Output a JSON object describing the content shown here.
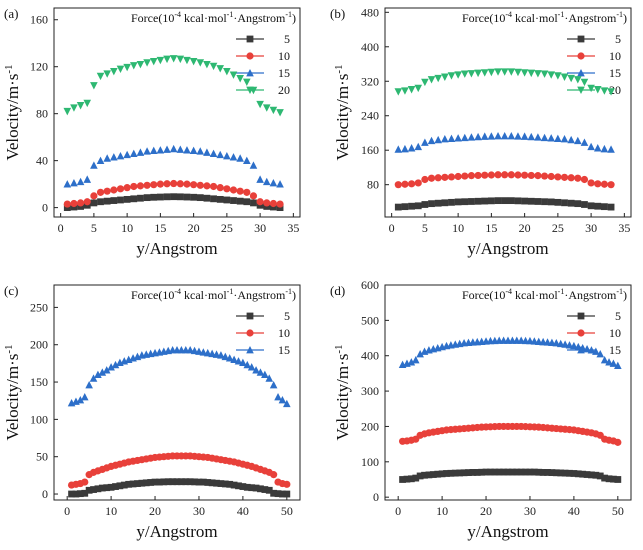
{
  "colors": {
    "s5": "#3a3a3a",
    "s10": "#e8403a",
    "s15": "#2d6fc9",
    "s20": "#2eb872"
  },
  "chart_data": [
    {
      "type": "scatter",
      "panel_label": "(a)",
      "xlabel": "y/Angstrom",
      "ylabel": "Velocity/m·s",
      "ylabel_sup": "-1",
      "xlim": [
        -1,
        36
      ],
      "ylim": [
        -8,
        170
      ],
      "xticks": [
        0,
        5,
        10,
        15,
        20,
        25,
        30,
        35
      ],
      "yticks": [
        0,
        40,
        80,
        120,
        160
      ],
      "legend_title": "Force(10",
      "legend_title_sup1": "-4",
      "legend_title_mid": " kcal·mol",
      "legend_title_sup2": "-1",
      "legend_title_end": "·Angstrom",
      "legend_title_sup3": "-1",
      "legend_title_close": ")",
      "x": [
        1,
        2,
        3,
        4,
        5,
        6,
        7,
        8,
        9,
        10,
        11,
        12,
        13,
        14,
        15,
        16,
        17,
        18,
        19,
        20,
        21,
        22,
        23,
        24,
        25,
        26,
        27,
        28,
        29,
        30,
        31,
        32,
        33
      ],
      "series": [
        {
          "name": "5",
          "marker": "square",
          "color_key": "s5",
          "values": [
            0,
            0.5,
            1,
            2,
            4,
            5,
            5.5,
            6,
            6.5,
            7,
            7.5,
            8,
            8.5,
            8.8,
            9,
            9.2,
            9.3,
            9.2,
            9,
            8.8,
            8.5,
            8,
            7.5,
            7,
            6.5,
            6,
            5.5,
            5,
            4,
            2,
            1,
            0.5,
            0
          ]
        },
        {
          "name": "10",
          "marker": "circle",
          "color_key": "s10",
          "values": [
            3,
            3.5,
            4,
            5,
            10,
            13,
            14,
            15,
            16,
            17,
            18,
            18.5,
            19,
            19.5,
            20,
            20.3,
            20.5,
            20.3,
            20,
            19.5,
            19,
            18.5,
            18,
            17,
            16,
            15,
            14,
            13,
            10,
            5,
            4,
            3.5,
            3
          ]
        },
        {
          "name": "15",
          "marker": "triangle-up",
          "color_key": "s15",
          "values": [
            20,
            21,
            22,
            24,
            36,
            40,
            42,
            43,
            44,
            45,
            46,
            47,
            48,
            48.5,
            49,
            49.5,
            50,
            49.5,
            49,
            48.5,
            48,
            47,
            46,
            45,
            44,
            43,
            42,
            40,
            36,
            24,
            22,
            21,
            20
          ]
        },
        {
          "name": "20",
          "marker": "triangle-down",
          "color_key": "s20",
          "values": [
            82,
            85,
            87,
            89,
            104,
            112,
            114,
            116,
            118,
            119.5,
            121,
            122,
            123.5,
            124.5,
            125.5,
            126.5,
            127,
            126.5,
            125.5,
            124.5,
            123.5,
            122,
            120.5,
            118.5,
            116,
            113,
            110,
            107,
            100,
            88,
            85,
            83,
            81
          ]
        }
      ]
    },
    {
      "type": "scatter",
      "panel_label": "(b)",
      "xlabel": "y/Angstrom",
      "ylabel": "Velocity/m·s",
      "ylabel_sup": "-1",
      "xlim": [
        -1,
        36
      ],
      "ylim": [
        5,
        490
      ],
      "xticks": [
        0,
        5,
        10,
        15,
        20,
        25,
        30,
        35
      ],
      "yticks": [
        80,
        160,
        240,
        320,
        400,
        480
      ],
      "legend_title": "Force(10",
      "legend_title_sup1": "-4",
      "legend_title_mid": " kcal·mol",
      "legend_title_sup2": "-1",
      "legend_title_end": "·Angstrom",
      "legend_title_sup3": "-1",
      "legend_title_close": ")",
      "x": [
        1,
        2,
        3,
        4,
        5,
        6,
        7,
        8,
        9,
        10,
        11,
        12,
        13,
        14,
        15,
        16,
        17,
        18,
        19,
        20,
        21,
        22,
        23,
        24,
        25,
        26,
        27,
        28,
        29,
        30,
        31,
        32,
        33
      ],
      "series": [
        {
          "name": "5",
          "marker": "square",
          "color_key": "s5",
          "values": [
            28,
            29,
            30,
            31,
            34,
            36,
            37,
            38,
            39,
            40,
            40.5,
            41,
            41.5,
            42,
            42.5,
            43,
            43,
            43,
            42.5,
            42,
            41.5,
            41,
            40.5,
            40,
            39,
            38,
            37,
            36,
            34,
            31,
            30,
            29,
            28
          ]
        },
        {
          "name": "10",
          "marker": "circle",
          "color_key": "s10",
          "values": [
            80,
            81,
            82,
            84,
            92,
            95,
            96,
            97,
            98,
            99,
            100,
            101,
            101.5,
            102,
            102.5,
            103,
            103,
            103,
            102.5,
            102,
            101.5,
            101,
            100,
            99,
            98,
            97,
            96,
            95,
            92,
            84,
            82,
            81,
            80
          ]
        },
        {
          "name": "15",
          "marker": "triangle-up",
          "color_key": "s15",
          "values": [
            162,
            163,
            165,
            168,
            178,
            182,
            184,
            186,
            187,
            188,
            189,
            190,
            191,
            192,
            192.5,
            193,
            193,
            193,
            192.5,
            192,
            191,
            190,
            189,
            188,
            187,
            186,
            184,
            182,
            178,
            168,
            165,
            163,
            162
          ]
        },
        {
          "name": "20",
          "marker": "triangle-down",
          "color_key": "s20",
          "values": [
            296,
            298,
            301,
            304,
            318,
            324,
            327,
            330,
            333,
            335,
            337,
            338,
            339,
            340,
            341,
            342,
            342,
            342,
            341,
            340,
            339,
            338,
            337,
            335,
            333,
            330,
            327,
            324,
            318,
            304,
            301,
            298,
            296
          ]
        }
      ]
    },
    {
      "type": "scatter",
      "panel_label": "(c)",
      "xlabel": "y/Angstrom",
      "ylabel": "Velocity/m·s",
      "ylabel_sup": "-1",
      "xlim": [
        -3,
        53
      ],
      "ylim": [
        -8,
        280
      ],
      "xticks": [
        0,
        10,
        20,
        30,
        40,
        50
      ],
      "yticks": [
        0,
        50,
        100,
        150,
        200,
        250
      ],
      "legend_title": "Force(10",
      "legend_title_sup1": "-4",
      "legend_title_mid": " kcal·mol",
      "legend_title_sup2": "-1",
      "legend_title_end": "·Angstrom",
      "legend_title_sup3": "-1",
      "legend_title_close": ")",
      "x": [
        1,
        2,
        3,
        4,
        5,
        6,
        7,
        8,
        9,
        10,
        11,
        12,
        13,
        14,
        15,
        16,
        17,
        18,
        19,
        20,
        21,
        22,
        23,
        24,
        25,
        26,
        27,
        28,
        29,
        30,
        31,
        32,
        33,
        34,
        35,
        36,
        37,
        38,
        39,
        40,
        41,
        42,
        43,
        44,
        45,
        46,
        47,
        48,
        49,
        50
      ],
      "series": [
        {
          "name": "5",
          "marker": "square",
          "color_key": "s5",
          "values": [
            0,
            0,
            0.5,
            1,
            5,
            6,
            7,
            8,
            8.5,
            9,
            10,
            11,
            12,
            13,
            13.5,
            14,
            14.5,
            15,
            15.5,
            16,
            16,
            16.3,
            16.5,
            16.5,
            16.5,
            16.5,
            16.5,
            16.5,
            16.3,
            16,
            16,
            15.5,
            15,
            14.5,
            14,
            13.5,
            13,
            12,
            11,
            10,
            9,
            8.5,
            8,
            7,
            6,
            5,
            1,
            0.5,
            0,
            0
          ]
        },
        {
          "name": "10",
          "marker": "circle",
          "color_key": "s10",
          "values": [
            12,
            13,
            14,
            16,
            26,
            29,
            31,
            33,
            35,
            37,
            38.5,
            40,
            41.5,
            43,
            44,
            45,
            46,
            47,
            48,
            49,
            49.5,
            50,
            50.5,
            51,
            51,
            51,
            51,
            51,
            50.5,
            50,
            49.5,
            49,
            48,
            47,
            46,
            45,
            44,
            43,
            41.5,
            40,
            38.5,
            37,
            35,
            33,
            31,
            29,
            26,
            16,
            14,
            13
          ]
        },
        {
          "name": "15",
          "marker": "triangle-up",
          "color_key": "s15",
          "values": [
            122,
            124,
            126,
            130,
            146,
            155,
            160,
            163,
            166,
            170,
            173,
            176,
            178,
            180,
            182,
            184,
            186,
            187,
            188,
            189,
            190,
            191,
            192,
            193,
            193,
            193,
            193,
            193,
            192,
            191,
            190,
            189,
            188,
            187,
            186,
            184,
            182,
            180,
            178,
            176,
            173,
            170,
            166,
            163,
            160,
            155,
            146,
            130,
            126,
            121
          ]
        }
      ]
    },
    {
      "type": "scatter",
      "panel_label": "(d)",
      "xlabel": "y/Angstrom",
      "ylabel": "Velocity/m·s",
      "ylabel_sup": "-1",
      "xlim": [
        -3,
        53
      ],
      "ylim": [
        -8,
        600
      ],
      "xticks": [
        0,
        10,
        20,
        30,
        40,
        50
      ],
      "yticks": [
        0,
        100,
        200,
        300,
        400,
        500,
        600
      ],
      "legend_title": "Force(10",
      "legend_title_sup1": "-4",
      "legend_title_mid": " kcal·mol",
      "legend_title_sup2": "-1",
      "legend_title_end": "·Angstrom",
      "legend_title_sup3": "-1",
      "legend_title_close": ")",
      "x": [
        1,
        2,
        3,
        4,
        5,
        6,
        7,
        8,
        9,
        10,
        11,
        12,
        13,
        14,
        15,
        16,
        17,
        18,
        19,
        20,
        21,
        22,
        23,
        24,
        25,
        26,
        27,
        28,
        29,
        30,
        31,
        32,
        33,
        34,
        35,
        36,
        37,
        38,
        39,
        40,
        41,
        42,
        43,
        44,
        45,
        46,
        47,
        48,
        49,
        50
      ],
      "series": [
        {
          "name": "5",
          "marker": "square",
          "color_key": "s5",
          "values": [
            50,
            51,
            52,
            54,
            60,
            62,
            63,
            64,
            65,
            66,
            67,
            67.5,
            68,
            68.5,
            69,
            69.5,
            70,
            70,
            70.5,
            71,
            71,
            71,
            71,
            71,
            71,
            71,
            71,
            71,
            71,
            71,
            71,
            70.5,
            70,
            70,
            69.5,
            69,
            68.5,
            68,
            67.5,
            67,
            66,
            65,
            64,
            63,
            62,
            60,
            54,
            52,
            51,
            50
          ]
        },
        {
          "name": "10",
          "marker": "circle",
          "color_key": "s10",
          "values": [
            158,
            159,
            161,
            164,
            175,
            179,
            182,
            184,
            186,
            188,
            190,
            191,
            192,
            193,
            194,
            195,
            196,
            197,
            198,
            198.5,
            199,
            199.5,
            200,
            200,
            200,
            200,
            200,
            200,
            199.5,
            199,
            198.5,
            198,
            197,
            196,
            195,
            194,
            193,
            192,
            191,
            190,
            188,
            186,
            184,
            182,
            179,
            175,
            164,
            161,
            159,
            155
          ]
        },
        {
          "name": "15",
          "marker": "triangle-up",
          "color_key": "s15",
          "values": [
            375,
            378,
            382,
            388,
            405,
            412,
            416,
            419,
            422,
            425,
            428,
            430,
            432,
            434,
            436,
            437,
            438,
            439,
            440,
            441,
            442,
            442.5,
            443,
            443,
            443,
            443,
            443,
            443,
            442.5,
            442,
            441,
            440,
            439,
            438,
            437,
            436,
            434,
            432,
            430,
            428,
            425,
            422,
            419,
            416,
            412,
            405,
            388,
            382,
            378,
            372
          ]
        }
      ]
    }
  ]
}
